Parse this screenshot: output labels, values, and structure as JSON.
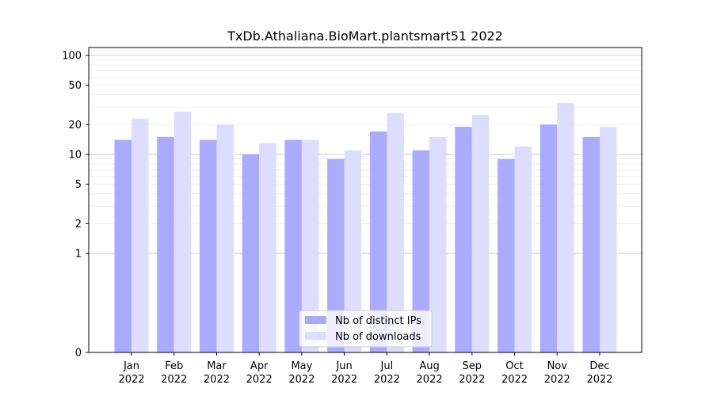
{
  "chart_data": {
    "type": "bar",
    "title": "TxDb.Athaliana.BioMart.plantsmart51 2022",
    "xlabel": "",
    "ylabel": "",
    "yscale": "symlog",
    "ylim": [
      0,
      120
    ],
    "yticks": [
      0,
      1,
      2,
      5,
      10,
      20,
      50,
      100
    ],
    "grid": "y",
    "legend_position": "bottom-center",
    "categories": [
      [
        "Jan",
        "2022"
      ],
      [
        "Feb",
        "2022"
      ],
      [
        "Mar",
        "2022"
      ],
      [
        "Apr",
        "2022"
      ],
      [
        "May",
        "2022"
      ],
      [
        "Jun",
        "2022"
      ],
      [
        "Jul",
        "2022"
      ],
      [
        "Aug",
        "2022"
      ],
      [
        "Sep",
        "2022"
      ],
      [
        "Oct",
        "2022"
      ],
      [
        "Nov",
        "2022"
      ],
      [
        "Dec",
        "2022"
      ]
    ],
    "series": [
      {
        "name": "Nb of distinct IPs",
        "color": "#aaaaff",
        "values": [
          14,
          15,
          14,
          10,
          14,
          9,
          17,
          11,
          19,
          9,
          20,
          15
        ]
      },
      {
        "name": "Nb of downloads",
        "color": "#ddddff",
        "values": [
          23,
          27,
          20,
          13,
          14,
          11,
          26,
          15,
          25,
          12,
          33,
          19
        ]
      }
    ]
  }
}
